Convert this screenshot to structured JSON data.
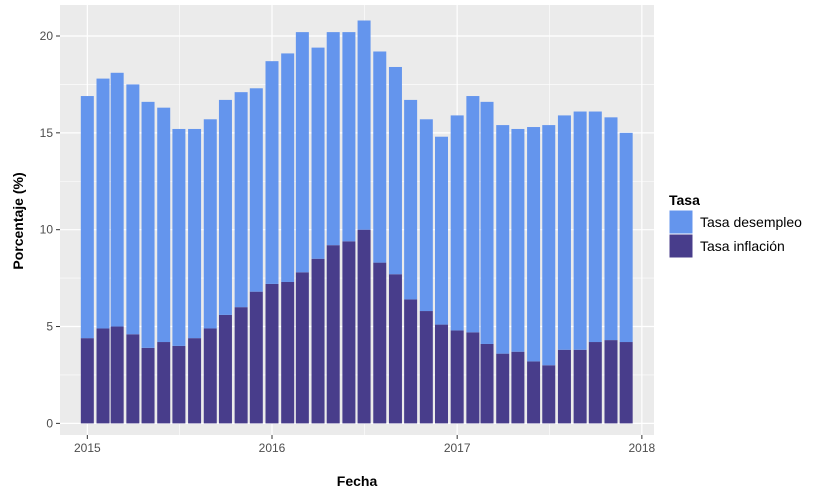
{
  "chart_data": {
    "type": "bar",
    "stacked": true,
    "xlabel": "Fecha",
    "ylabel": "Porcentaje (%)",
    "x_tick_labels": [
      "2015",
      "2016",
      "2017",
      "2018"
    ],
    "y_ticks": [
      0,
      5,
      10,
      15,
      20
    ],
    "ylim": [
      -0.6,
      21.6
    ],
    "x_range": [
      "2014-11-08",
      "2018-01-25"
    ],
    "grid": true,
    "legend": {
      "title": "Tasa",
      "placement": "right"
    },
    "x": [
      "2015-01",
      "2015-02",
      "2015-03",
      "2015-04",
      "2015-05",
      "2015-06",
      "2015-07",
      "2015-08",
      "2015-09",
      "2015-10",
      "2015-11",
      "2015-12",
      "2016-01",
      "2016-02",
      "2016-03",
      "2016-04",
      "2016-05",
      "2016-06",
      "2016-07",
      "2016-08",
      "2016-09",
      "2016-10",
      "2016-11",
      "2016-12",
      "2017-01",
      "2017-02",
      "2017-03",
      "2017-04",
      "2017-05",
      "2017-06",
      "2017-07",
      "2017-08",
      "2017-09",
      "2017-10",
      "2017-11",
      "2017-12"
    ],
    "series": [
      {
        "name": "Tasa inflación",
        "color": "#483D8B",
        "values": [
          4.4,
          4.9,
          5.0,
          4.6,
          3.9,
          4.2,
          4.0,
          4.4,
          4.9,
          5.6,
          6.0,
          6.8,
          7.2,
          7.3,
          7.8,
          8.5,
          9.2,
          9.4,
          10.0,
          8.3,
          7.7,
          6.4,
          5.8,
          5.1,
          4.8,
          4.7,
          4.1,
          3.6,
          3.7,
          3.2,
          3.0,
          3.8,
          3.8,
          4.2,
          4.3,
          4.2
        ]
      },
      {
        "name": "Tasa desempleo",
        "color": "#6495ED",
        "values": [
          12.5,
          12.9,
          13.1,
          12.9,
          12.7,
          12.1,
          11.2,
          10.8,
          10.8,
          11.1,
          11.1,
          10.5,
          11.5,
          11.8,
          12.4,
          10.9,
          11.0,
          10.8,
          10.8,
          10.9,
          10.7,
          10.3,
          9.9,
          9.7,
          11.1,
          12.2,
          12.5,
          11.8,
          11.5,
          12.1,
          12.4,
          12.1,
          12.3,
          11.9,
          11.5,
          10.8
        ]
      }
    ]
  }
}
